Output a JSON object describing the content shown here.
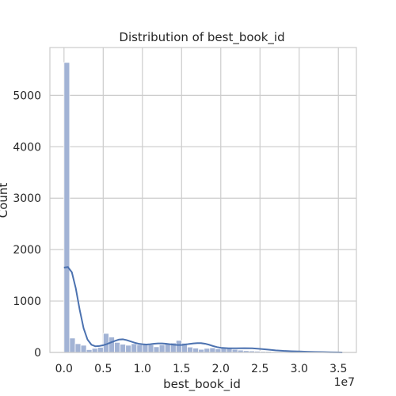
{
  "chart_data": {
    "type": "bar",
    "title": "Distribution of best_book_id",
    "xlabel": "best_book_id",
    "ylabel": "Count",
    "x_offset_label": "1e7",
    "xlim": [
      -0.18,
      3.73
    ],
    "ylim": [
      0,
      5930
    ],
    "x_ticks": [
      0.0,
      0.5,
      1.0,
      1.5,
      2.0,
      2.5,
      3.0,
      3.5
    ],
    "x_tick_labels": [
      "0.0",
      "0.5",
      "1.0",
      "1.5",
      "2.0",
      "2.5",
      "3.0",
      "3.5"
    ],
    "y_ticks": [
      0,
      1000,
      2000,
      3000,
      4000,
      5000
    ],
    "y_tick_labels": [
      "0",
      "1000",
      "2000",
      "3000",
      "4000",
      "5000"
    ],
    "grid": true,
    "bin_start": 0.0,
    "bin_width": 0.0715,
    "values": [
      5640,
      280,
      170,
      140,
      55,
      80,
      100,
      370,
      300,
      195,
      160,
      140,
      170,
      150,
      165,
      150,
      110,
      150,
      165,
      185,
      235,
      180,
      105,
      85,
      60,
      80,
      90,
      70,
      90,
      90,
      60,
      45,
      35,
      30,
      25,
      20,
      20,
      15,
      15,
      10,
      10,
      5,
      5,
      5,
      3,
      2,
      2,
      1,
      1,
      1
    ],
    "kde": [
      [
        0.0,
        1650
      ],
      [
        0.05,
        1660
      ],
      [
        0.1,
        1560
      ],
      [
        0.15,
        1250
      ],
      [
        0.2,
        830
      ],
      [
        0.25,
        470
      ],
      [
        0.3,
        250
      ],
      [
        0.35,
        150
      ],
      [
        0.4,
        120
      ],
      [
        0.45,
        125
      ],
      [
        0.5,
        140
      ],
      [
        0.55,
        165
      ],
      [
        0.6,
        195
      ],
      [
        0.65,
        225
      ],
      [
        0.7,
        250
      ],
      [
        0.75,
        255
      ],
      [
        0.8,
        240
      ],
      [
        0.85,
        215
      ],
      [
        0.9,
        190
      ],
      [
        0.95,
        170
      ],
      [
        1.0,
        160
      ],
      [
        1.05,
        155
      ],
      [
        1.1,
        160
      ],
      [
        1.15,
        170
      ],
      [
        1.2,
        175
      ],
      [
        1.25,
        175
      ],
      [
        1.3,
        170
      ],
      [
        1.35,
        160
      ],
      [
        1.4,
        150
      ],
      [
        1.45,
        145
      ],
      [
        1.5,
        145
      ],
      [
        1.55,
        155
      ],
      [
        1.6,
        165
      ],
      [
        1.65,
        175
      ],
      [
        1.7,
        180
      ],
      [
        1.75,
        180
      ],
      [
        1.8,
        170
      ],
      [
        1.85,
        150
      ],
      [
        1.9,
        125
      ],
      [
        1.95,
        105
      ],
      [
        2.0,
        90
      ],
      [
        2.1,
        80
      ],
      [
        2.2,
        80
      ],
      [
        2.3,
        82
      ],
      [
        2.4,
        80
      ],
      [
        2.5,
        70
      ],
      [
        2.6,
        55
      ],
      [
        2.7,
        40
      ],
      [
        2.8,
        30
      ],
      [
        2.9,
        24
      ],
      [
        3.0,
        19
      ],
      [
        3.1,
        14
      ],
      [
        3.2,
        10
      ],
      [
        3.3,
        7
      ],
      [
        3.4,
        4
      ],
      [
        3.5,
        2
      ],
      [
        3.55,
        1
      ]
    ],
    "colors": {
      "bar_fill": "#a2b3d5",
      "bar_edge": "#ffffff",
      "kde_line": "#4c72b0",
      "grid": "#cccccc",
      "spine": "#cccccc",
      "text": "#262626"
    }
  }
}
